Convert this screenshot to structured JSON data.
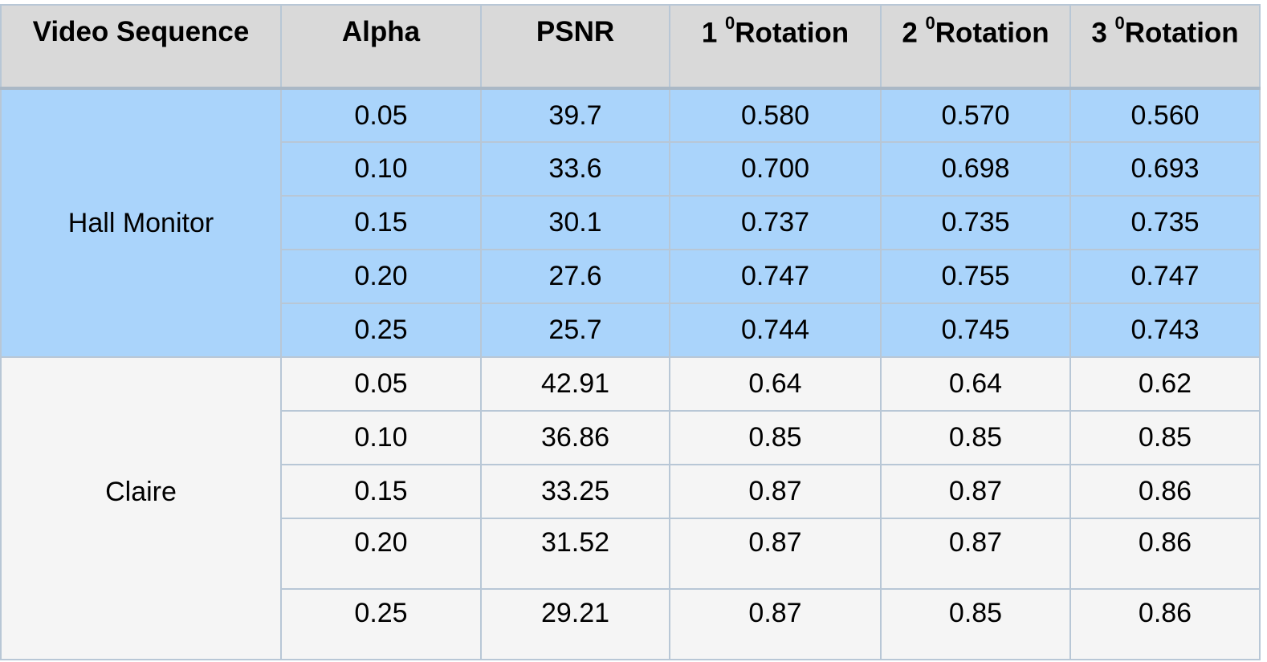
{
  "headers": {
    "video_sequence": "Video Sequence",
    "alpha": "Alpha",
    "psnr": "PSNR",
    "rot1_num": "1",
    "rot1_sup": "0",
    "rot1_label": "Rotation",
    "rot2_num": "2",
    "rot2_sup": "0",
    "rot2_label": "Rotation",
    "rot3_num": "3",
    "rot3_sup": "0",
    "rot3_label": "Rotation"
  },
  "groups": [
    {
      "name": "Hall Monitor",
      "rows": [
        {
          "alpha": "0.05",
          "psnr": "39.7",
          "rot1": "0.580",
          "rot2": "0.570",
          "rot3": "0.560"
        },
        {
          "alpha": "0.10",
          "psnr": "33.6",
          "rot1": "0.700",
          "rot2": "0.698",
          "rot3": "0.693"
        },
        {
          "alpha": "0.15",
          "psnr": "30.1",
          "rot1": "0.737",
          "rot2": "0.735",
          "rot3": "0.735"
        },
        {
          "alpha": "0.20",
          "psnr": "27.6",
          "rot1": "0.747",
          "rot2": "0.755",
          "rot3": "0.747"
        },
        {
          "alpha": "0.25",
          "psnr": "25.7",
          "rot1": "0.744",
          "rot2": "0.745",
          "rot3": "0.743"
        }
      ]
    },
    {
      "name": "Claire",
      "rows": [
        {
          "alpha": "0.05",
          "psnr": "42.91",
          "rot1": "0.64",
          "rot2": "0.64",
          "rot3": "0.62"
        },
        {
          "alpha": "0.10",
          "psnr": "36.86",
          "rot1": "0.85",
          "rot2": "0.85",
          "rot3": "0.85"
        },
        {
          "alpha": "0.15",
          "psnr": "33.25",
          "rot1": "0.87",
          "rot2": "0.87",
          "rot3": "0.86"
        },
        {
          "alpha": "0.20",
          "psnr": "31.52",
          "rot1": "0.87",
          "rot2": "0.87",
          "rot3": "0.86"
        },
        {
          "alpha": "0.25",
          "psnr": "29.21",
          "rot1": "0.87",
          "rot2": "0.85",
          "rot3": "0.86"
        }
      ]
    }
  ],
  "colors": {
    "header_bg": "#d9d9d9",
    "hall_monitor_bg": "#aad4fb",
    "claire_bg": "#f5f5f5",
    "border": "#b8c7d6"
  }
}
